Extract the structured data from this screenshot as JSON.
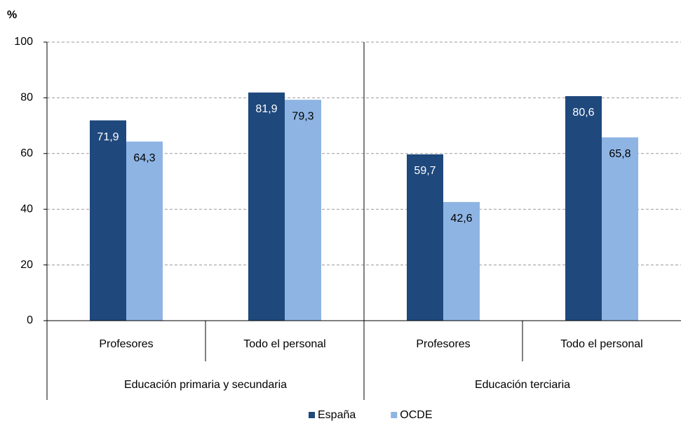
{
  "chart_data": {
    "type": "bar",
    "y_label": "%",
    "groups": [
      {
        "name": "Educación primaria y secundaria",
        "categories": [
          "Profesores",
          "Todo el personal"
        ]
      },
      {
        "name": "Educación terciaria",
        "categories": [
          "Profesores",
          "Todo el personal"
        ]
      }
    ],
    "series": [
      {
        "name": "España",
        "color": "#1f487c",
        "label_color": "#ffffff",
        "values": [
          71.9,
          81.9,
          59.7,
          80.6
        ],
        "value_labels": [
          "71,9",
          "81,9",
          "59,7",
          "80,6"
        ]
      },
      {
        "name": "OCDE",
        "color": "#8eb4e3",
        "label_color": "#000000",
        "values": [
          64.3,
          79.3,
          42.6,
          65.8
        ],
        "value_labels": [
          "64,3",
          "79,3",
          "42,6",
          "65,8"
        ]
      }
    ],
    "ylim": [
      0,
      100
    ],
    "yticks": [
      0,
      20,
      40,
      60,
      80,
      100
    ],
    "grid": true,
    "legend": "bottom"
  }
}
